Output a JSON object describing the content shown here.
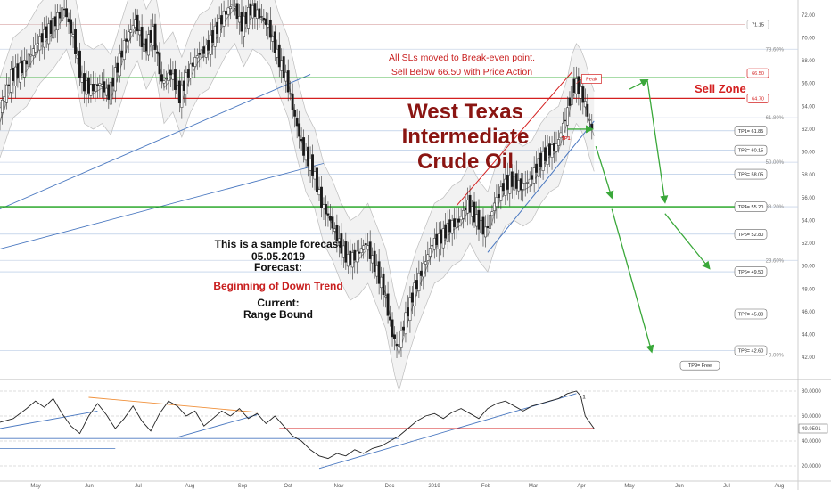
{
  "chart_data": [
    {
      "type": "line",
      "subtype": "candlestick-price",
      "title": "West Texas Intermediate Crude Oil",
      "months": [
        "May",
        "Jun",
        "Jul",
        "Aug",
        "Sep",
        "Oct",
        "Nov",
        "Dec",
        "2019",
        "Feb",
        "Mar",
        "Apr",
        "May",
        "Jun",
        "Jul",
        "Aug"
      ],
      "price_axis_ticks": [
        "72.00",
        "70.00",
        "68.00",
        "66.00",
        "64.00",
        "62.00",
        "60.00",
        "58.00",
        "56.00",
        "54.00",
        "52.00",
        "50.00",
        "48.00",
        "46.00",
        "44.00",
        "42.00"
      ],
      "ylim": [
        41,
        73
      ],
      "price_path": [
        [
          0,
          63.0
        ],
        [
          3,
          66.5
        ],
        [
          6,
          67.5
        ],
        [
          9,
          69.5
        ],
        [
          12,
          70.8
        ],
        [
          15,
          72.5
        ],
        [
          17,
          70.0
        ],
        [
          19,
          66.0
        ],
        [
          21,
          65.5
        ],
        [
          23,
          66.0
        ],
        [
          25,
          65.0
        ],
        [
          27,
          67.5
        ],
        [
          29,
          70.0
        ],
        [
          31,
          71.5
        ],
        [
          33,
          69.0
        ],
        [
          35,
          70.5
        ],
        [
          37,
          66.0
        ],
        [
          39,
          67.0
        ],
        [
          41,
          64.8
        ],
        [
          43,
          67.0
        ],
        [
          45,
          68.5
        ],
        [
          47,
          69.0
        ],
        [
          49,
          70.5
        ],
        [
          51,
          72.0
        ],
        [
          53,
          73.0
        ],
        [
          55,
          71.0
        ],
        [
          57,
          72.5
        ],
        [
          59,
          72.0
        ],
        [
          61,
          71.0
        ],
        [
          63,
          68.5
        ],
        [
          65,
          66.5
        ],
        [
          67,
          63.0
        ],
        [
          69,
          60.0
        ],
        [
          71,
          58.5
        ],
        [
          73,
          55.5
        ],
        [
          75,
          54.0
        ],
        [
          77,
          52.0
        ],
        [
          79,
          50.5
        ],
        [
          81,
          51.0
        ],
        [
          83,
          52.0
        ],
        [
          85,
          50.0
        ],
        [
          87,
          48.0
        ],
        [
          89,
          44.0
        ],
        [
          90,
          42.6
        ],
        [
          92,
          45.5
        ],
        [
          94,
          48.0
        ],
        [
          96,
          50.0
        ],
        [
          98,
          52.0
        ],
        [
          100,
          52.5
        ],
        [
          102,
          53.5
        ],
        [
          104,
          54.0
        ],
        [
          106,
          55.5
        ],
        [
          108,
          54.0
        ],
        [
          110,
          53.0
        ],
        [
          112,
          55.5
        ],
        [
          114,
          57.0
        ],
        [
          116,
          57.5
        ],
        [
          118,
          57.0
        ],
        [
          120,
          57.5
        ],
        [
          122,
          59.0
        ],
        [
          124,
          60.0
        ],
        [
          126,
          60.5
        ],
        [
          128,
          63.0
        ],
        [
          129,
          65.0
        ],
        [
          130,
          66.0
        ],
        [
          131,
          65.5
        ],
        [
          132,
          64.5
        ],
        [
          133,
          63.0
        ],
        [
          134,
          61.8
        ]
      ],
      "series": [
        {
          "name": "Price",
          "color": "#333333"
        }
      ],
      "horizontal_levels": [
        {
          "label": "66.50",
          "value": 66.5,
          "color": "#19a019"
        },
        {
          "label": "64.70",
          "value": 64.7,
          "color": "#d42020"
        },
        {
          "label": "55.20",
          "value": 55.2,
          "color": "#19a019"
        }
      ],
      "fib_levels": [
        {
          "label": "78.60%",
          "value": 69.0
        },
        {
          "label": "61.80%",
          "value": 63.0
        },
        {
          "label": "50.00%",
          "value": 59.1
        },
        {
          "label": "38.20%",
          "value": 55.2
        },
        {
          "label": "23.60%",
          "value": 50.5
        },
        {
          "label": "0.00%",
          "value": 42.2
        }
      ],
      "targets": [
        {
          "label": "TP1= 61.85",
          "value": 61.85
        },
        {
          "label": "TP2= 60.15",
          "value": 60.15
        },
        {
          "label": "TP3= 58.05",
          "value": 58.05
        },
        {
          "label": "TP4= 55.20",
          "value": 55.2
        },
        {
          "label": "TP5= 52.80",
          "value": 52.8
        },
        {
          "label": "TP6= 49.50",
          "value": 49.5
        },
        {
          "label": "TP7= 45.80",
          "value": 45.8
        },
        {
          "label": "TP8= 42.60",
          "value": 42.6
        }
      ],
      "top_level": {
        "label": "71.15",
        "value": 71.15
      },
      "free_label": "TP9= Free",
      "peak_label": "Peak",
      "tp1_marker": "TP1",
      "sell_zone_label": "Sell Zone",
      "sl_note": "All SLs moved to Break-even point.",
      "sell_note": "Sell Below 66.50 with Price Action",
      "forecast": {
        "line1": "This is a sample forecast",
        "line2": "05.05.2019",
        "line3": "Forecast:",
        "line4": "Beginning of Down Trend",
        "line5": "Current:",
        "line6": "Range Bound"
      }
    },
    {
      "type": "line",
      "subtype": "oscillator",
      "ylim": [
        15,
        85
      ],
      "axis_ticks": [
        "80.0000",
        "60.0000",
        "40.0000",
        "20.0000"
      ],
      "current_value": "49.9591",
      "marker_label": "1",
      "series": [
        {
          "name": "Oscillator",
          "color": "#222222",
          "values": [
            [
              0,
              55
            ],
            [
              3,
              58
            ],
            [
              6,
              66
            ],
            [
              8,
              72
            ],
            [
              10,
              67
            ],
            [
              12,
              74
            ],
            [
              14,
              62
            ],
            [
              16,
              52
            ],
            [
              18,
              46
            ],
            [
              20,
              60
            ],
            [
              22,
              70
            ],
            [
              24,
              61
            ],
            [
              26,
              50
            ],
            [
              28,
              58
            ],
            [
              30,
              68
            ],
            [
              32,
              56
            ],
            [
              34,
              48
            ],
            [
              36,
              62
            ],
            [
              38,
              72
            ],
            [
              40,
              68
            ],
            [
              42,
              60
            ],
            [
              44,
              64
            ],
            [
              46,
              52
            ],
            [
              48,
              58
            ],
            [
              50,
              64
            ],
            [
              52,
              60
            ],
            [
              54,
              66
            ],
            [
              56,
              58
            ],
            [
              58,
              62
            ],
            [
              60,
              54
            ],
            [
              62,
              60
            ],
            [
              64,
              52
            ],
            [
              66,
              44
            ],
            [
              68,
              40
            ],
            [
              70,
              33
            ],
            [
              72,
              28
            ],
            [
              74,
              26
            ],
            [
              76,
              30
            ],
            [
              78,
              28
            ],
            [
              80,
              33
            ],
            [
              82,
              30
            ],
            [
              84,
              34
            ],
            [
              86,
              36
            ],
            [
              88,
              40
            ],
            [
              90,
              44
            ],
            [
              92,
              50
            ],
            [
              94,
              56
            ],
            [
              96,
              60
            ],
            [
              98,
              62
            ],
            [
              100,
              58
            ],
            [
              102,
              63
            ],
            [
              104,
              66
            ],
            [
              106,
              62
            ],
            [
              108,
              58
            ],
            [
              110,
              66
            ],
            [
              112,
              70
            ],
            [
              114,
              72
            ],
            [
              116,
              68
            ],
            [
              118,
              64
            ],
            [
              120,
              68
            ],
            [
              122,
              70
            ],
            [
              124,
              72
            ],
            [
              126,
              74
            ],
            [
              128,
              78
            ],
            [
              130,
              80
            ],
            [
              131,
              76
            ],
            [
              132,
              60
            ],
            [
              133,
              55
            ],
            [
              134,
              50
            ]
          ]
        }
      ]
    }
  ]
}
